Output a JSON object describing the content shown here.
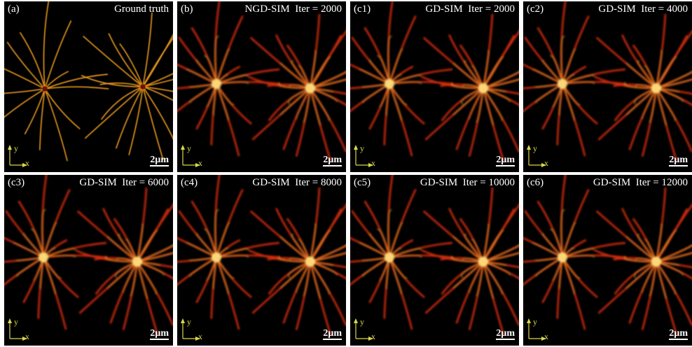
{
  "panels": [
    {
      "label": "(a)",
      "title": "Ground truth",
      "scale_bar": "2μm",
      "axis_x": "x",
      "axis_y": "y"
    },
    {
      "label": "(b)",
      "title": "NGD-SIM  Iter = 2000",
      "scale_bar": "2μm",
      "axis_x": "x",
      "axis_y": "y"
    },
    {
      "label": "(c1)",
      "title": "GD-SIM  Iter = 2000",
      "scale_bar": "2μm",
      "axis_x": "x",
      "axis_y": "y"
    },
    {
      "label": "(c2)",
      "title": "GD-SIM  Iter = 4000",
      "scale_bar": "2μm",
      "axis_x": "x",
      "axis_y": "y"
    },
    {
      "label": "(c3)",
      "title": "GD-SIM  Iter = 6000",
      "scale_bar": "2μm",
      "axis_x": "x",
      "axis_y": "y"
    },
    {
      "label": "(c4)",
      "title": "GD-SIM  Iter = 8000",
      "scale_bar": "2μm",
      "axis_x": "x",
      "axis_y": "y"
    },
    {
      "label": "(c5)",
      "title": "GD-SIM  Iter = 10000",
      "scale_bar": "2μm",
      "axis_x": "x",
      "axis_y": "y"
    },
    {
      "label": "(c6)",
      "title": "GD-SIM  Iter = 12000",
      "scale_bar": "2μm",
      "axis_x": "x",
      "axis_y": "y"
    }
  ]
}
